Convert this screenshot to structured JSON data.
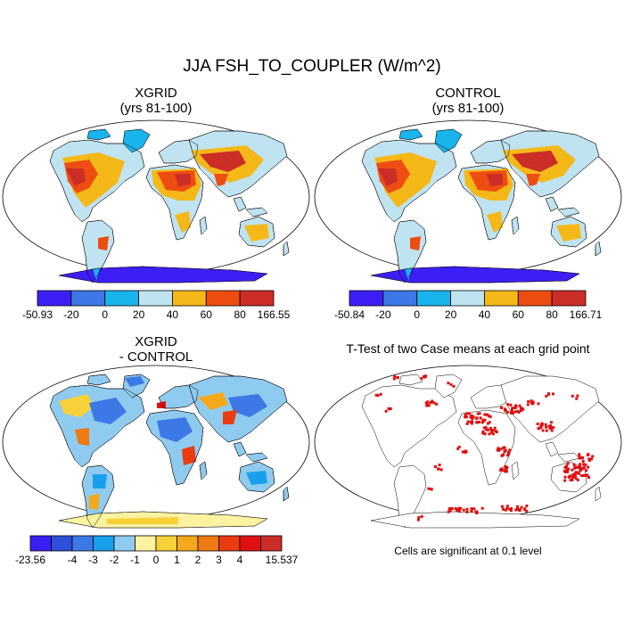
{
  "main_title": "JJA FSH_TO_COUPLER (W/m^2)",
  "panels": [
    {
      "title_line1": "XGRID",
      "title_line2": "(yrs 81-100)"
    },
    {
      "title_line1": "CONTROL",
      "title_line2": "(yrs 81-100)"
    },
    {
      "title_line1": "XGRID",
      "title_line2": "- CONTROL"
    },
    {
      "title_line1": "T-Test of two Case means at each grid point"
    }
  ],
  "note": "Cells are significant at 0.1 level",
  "colorbars": [
    {
      "colors": [
        "#3d1ff5",
        "#3c78e6",
        "#19b4ec",
        "#bfe3f1",
        "#f4b918",
        "#ee4d12",
        "#cb2d27"
      ],
      "labels": [
        "-50.93",
        "-20",
        "0",
        "20",
        "40",
        "60",
        "80",
        "166.55"
      ]
    },
    {
      "colors": [
        "#3d1ff5",
        "#3c78e6",
        "#19b4ec",
        "#bfe3f1",
        "#f4b918",
        "#ee4d12",
        "#cb2d27"
      ],
      "labels": [
        "-50.84",
        "-20",
        "0",
        "20",
        "40",
        "60",
        "80",
        "166.71"
      ]
    },
    {
      "colors": [
        "#3a1ff5",
        "#2e4fd9",
        "#3c78e6",
        "#19a0ec",
        "#8fcbef",
        "#fbf3a0",
        "#f7d13a",
        "#f4a91a",
        "#ee7a12",
        "#ea3c10",
        "#e01010",
        "#cb2d27"
      ],
      "labels": [
        "-23.56",
        "-4",
        "-3",
        "-2",
        "-1",
        "0",
        "1",
        "2",
        "3",
        "4",
        "15.537"
      ]
    }
  ],
  "colors": {
    "map_outline": "#000000",
    "significance": "#e01010"
  }
}
